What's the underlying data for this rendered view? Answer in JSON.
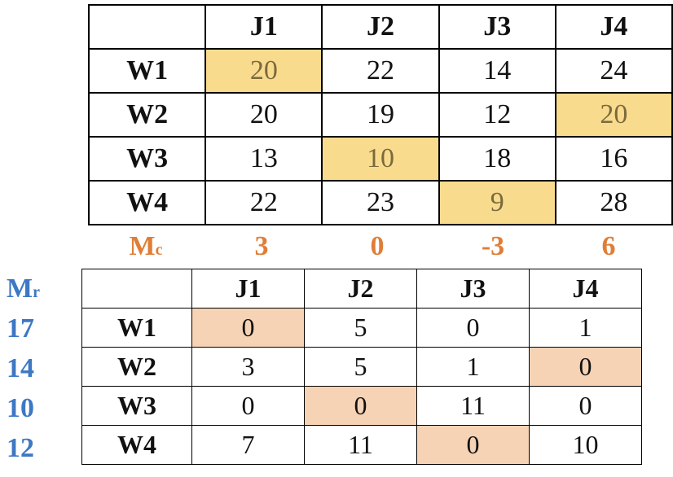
{
  "table1": {
    "columns": [
      "J1",
      "J2",
      "J3",
      "J4"
    ],
    "rows": [
      {
        "label": "W1",
        "cells": [
          "20",
          "22",
          "14",
          "24"
        ]
      },
      {
        "label": "W2",
        "cells": [
          "20",
          "19",
          "12",
          "20"
        ]
      },
      {
        "label": "W3",
        "cells": [
          "13",
          "10",
          "18",
          "16"
        ]
      },
      {
        "label": "W4",
        "cells": [
          "22",
          "23",
          "9",
          "28"
        ]
      }
    ],
    "highlight_color": "#f9db8e"
  },
  "mc": {
    "label_main": "M",
    "label_sub": "c",
    "values": [
      "3",
      "0",
      "-3",
      "6"
    ],
    "color": "#e07e37"
  },
  "mr": {
    "label_main": "M",
    "label_sub": "r",
    "values": [
      "17",
      "14",
      "10",
      "12"
    ],
    "color": "#3d78c4"
  },
  "table2": {
    "columns": [
      "J1",
      "J2",
      "J3",
      "J4"
    ],
    "rows": [
      {
        "label": "W1",
        "cells": [
          "0",
          "5",
          "0",
          "1"
        ]
      },
      {
        "label": "W2",
        "cells": [
          "3",
          "5",
          "1",
          "0"
        ]
      },
      {
        "label": "W3",
        "cells": [
          "0",
          "0",
          "11",
          "0"
        ]
      },
      {
        "label": "W4",
        "cells": [
          "7",
          "11",
          "0",
          "10"
        ]
      }
    ],
    "highlight_color": "#f6d3b5"
  }
}
